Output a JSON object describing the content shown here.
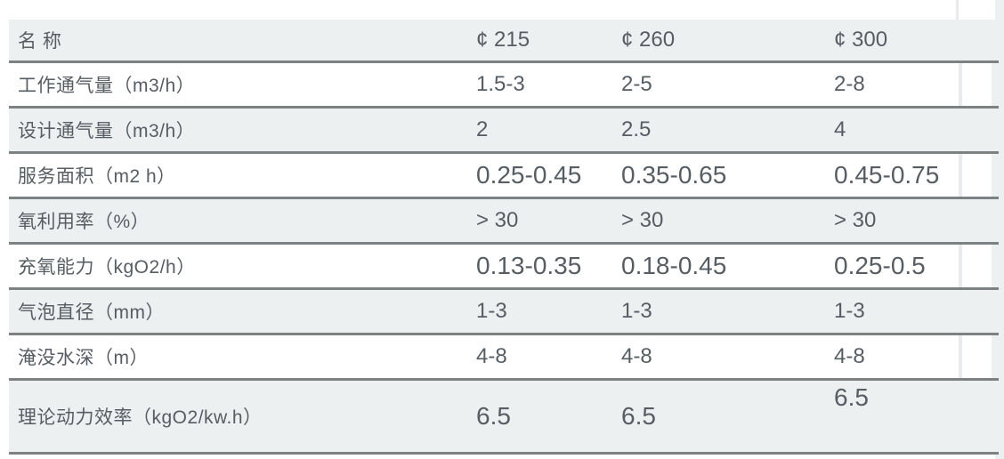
{
  "colors": {
    "row_gray": "#edf0f0",
    "row_white": "#ffffff",
    "rule_dark": "#7c8182",
    "column_separator": "#e7ebeb",
    "text": "#565d63"
  },
  "table": {
    "header": {
      "name_label": "名 称",
      "columns": [
        "¢ 215",
        "¢ 260",
        "¢ 300"
      ]
    },
    "rows": [
      {
        "label": "工作通气量（m3/h）",
        "values": [
          "1.5-3",
          "2-5",
          "2-8"
        ],
        "bg": "white",
        "size": "normal",
        "tall": false
      },
      {
        "label": "设计通气量（m3/h）",
        "values": [
          "2",
          "2.5",
          "4"
        ],
        "bg": "gray",
        "size": "normal",
        "tall": false
      },
      {
        "label": "服务面积（m2 h）",
        "values": [
          "0.25-0.45",
          "0.35-0.65",
          "0.45-0.75"
        ],
        "bg": "white",
        "size": "large",
        "tall": false
      },
      {
        "label": "氧利用率（%）",
        "values": [
          "> 30",
          "> 30",
          "> 30"
        ],
        "bg": "gray",
        "size": "normal",
        "tall": false
      },
      {
        "label": "充氧能力（kgO2/h）",
        "values": [
          "0.13-0.35",
          "0.18-0.45",
          "0.25-0.5"
        ],
        "bg": "white",
        "size": "large",
        "tall": false
      },
      {
        "label": "气泡直径（mm）",
        "values": [
          "1-3",
          "1-3",
          "1-3"
        ],
        "bg": "gray",
        "size": "normal",
        "tall": false
      },
      {
        "label": "淹没水深（m）",
        "values": [
          "4-8",
          "4-8",
          "4-8"
        ],
        "bg": "white",
        "size": "normal",
        "tall": false
      },
      {
        "label": "理论动力效率（kgO2/kw.h）",
        "values": [
          "6.5",
          "6.5",
          "6.5"
        ],
        "bg": "gray",
        "size": "large",
        "tall": true
      }
    ]
  }
}
